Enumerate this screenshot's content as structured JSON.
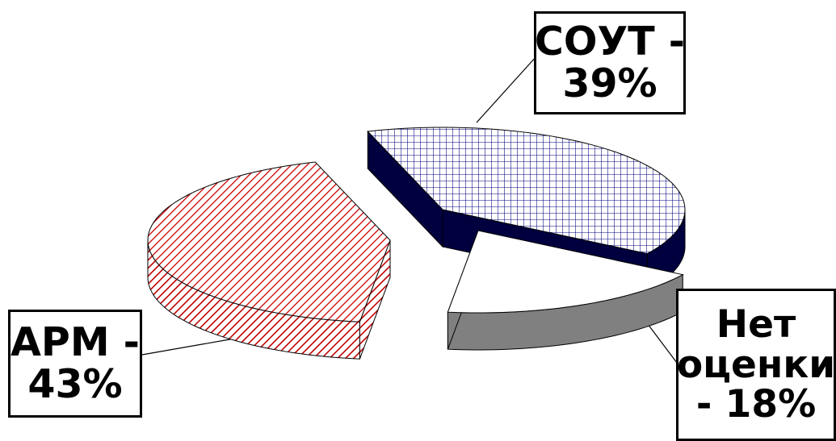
{
  "chart_data": {
    "type": "pie",
    "style": "3d-exploded",
    "slices": [
      {
        "key": "sout",
        "label_lines": [
          "СОУТ -",
          "39%"
        ],
        "value": 39,
        "top_color": "#000080",
        "side_color": "#00003f",
        "pattern": "grid"
      },
      {
        "key": "none",
        "label_lines": [
          "Нет",
          "оценки",
          "- 18%"
        ],
        "value": 18,
        "top_color": "#ffffff",
        "side_color": "#808080",
        "pattern": "none"
      },
      {
        "key": "arm",
        "label_lines": [
          "АРМ -",
          "43%"
        ],
        "value": 43,
        "top_color": "#cc0000",
        "side_color": "#cc0000",
        "pattern": "diagonal"
      }
    ]
  }
}
